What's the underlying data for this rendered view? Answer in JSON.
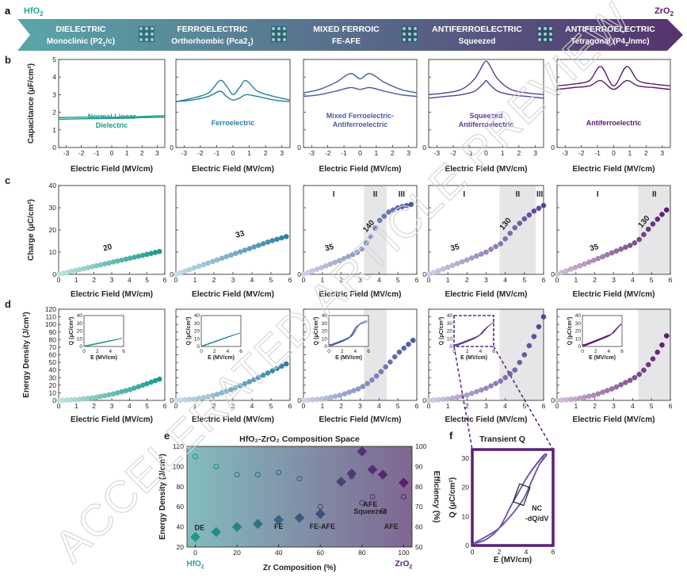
{
  "colors": {
    "c0": "#1a9a8c",
    "c1": "#2a7fa3",
    "c2": "#4a5aa3",
    "c3": "#5a3f95",
    "c4": "#5c1c6e",
    "arrow_start": "#5aa6a8",
    "arrow_end": "#55336e",
    "shade": "#e6e6e8",
    "watermark": "#d4d4d4",
    "hfo2_label": "#2aa39a",
    "zro2_label": "#5c1c6e"
  },
  "labels": {
    "panel_a": "a",
    "panel_b": "b",
    "panel_c": "c",
    "panel_d": "d",
    "panel_e": "e",
    "panel_f": "f",
    "hfo2": "HfO",
    "zro2": "ZrO",
    "sub2": "2",
    "watermark": "ACCELERATED ARTICLE PREVIEW"
  },
  "phases": [
    {
      "line1": "DIELECTRIC",
      "line2": "Monoclinic (P2",
      "sub": "1",
      "tail": "/c)",
      "icon": "crystal-icon"
    },
    {
      "line1": "FERROELECTRIC",
      "line2": "Orthorhombic (Pca2",
      "sub": "1",
      "tail": ")",
      "icon": "crystal-icon"
    },
    {
      "line1": "MIXED FERROIC",
      "line2": "FE-AFE",
      "sub": "",
      "tail": "",
      "icon": "crystal-icon"
    },
    {
      "line1": "ANTIFERROELECTRIC",
      "line2": "Squeezed",
      "sub": "",
      "tail": "",
      "icon": "crystal-icon"
    },
    {
      "line1": "ANTIFERROELECTRIC",
      "line2": "Tetragonal (P4",
      "sub": "2",
      "tail": "/nmc)",
      "icon": "crystal-icon"
    }
  ],
  "chart_data": [
    {
      "id": "capacitance",
      "type": "line",
      "ylabel": "Capacitance (μF/cm²)",
      "xlabel": "Electric Field (MV/cm)",
      "xlim": [
        -3.5,
        3.5
      ],
      "ylim": [
        0,
        5
      ],
      "xticks": [
        "-3",
        "-2",
        "-1",
        "0",
        "1",
        "2",
        "3"
      ],
      "yticks": [
        "0",
        "1",
        "2",
        "3",
        "4",
        "5"
      ],
      "panels": [
        {
          "label": "Normal Linear Dielectric",
          "x": [
            -3.5,
            -2,
            0,
            2,
            3.5
          ],
          "up": [
            1.7,
            1.72,
            1.72,
            1.76,
            1.8
          ],
          "down": [
            1.6,
            1.63,
            1.65,
            1.7,
            1.72
          ]
        },
        {
          "label": "Ferroelectric",
          "x": [
            -3.5,
            -2.5,
            -1.5,
            -0.8,
            -0.4,
            0,
            0.4,
            0.8,
            1.5,
            2.5,
            3.5
          ],
          "up": [
            2.6,
            2.8,
            3.1,
            3.8,
            3.5,
            3.0,
            3.4,
            3.8,
            3.2,
            2.9,
            2.7
          ],
          "down": [
            2.6,
            2.7,
            2.9,
            3.2,
            2.9,
            2.7,
            2.8,
            3.0,
            2.9,
            2.7,
            2.6
          ]
        },
        {
          "label": "Mixed Ferroelectric-Antiferroelectric",
          "x": [
            -3.5,
            -2.5,
            -1.5,
            -0.6,
            0,
            0.6,
            1.5,
            2.5,
            3.5
          ],
          "up": [
            3.1,
            3.3,
            3.7,
            4.2,
            3.9,
            4.2,
            3.7,
            3.3,
            3.1
          ],
          "down": [
            2.9,
            3.0,
            3.2,
            3.4,
            3.3,
            3.4,
            3.2,
            3.0,
            2.9
          ]
        },
        {
          "label": "Squeezed Antiferroelectric",
          "x": [
            -3.5,
            -2.5,
            -1.5,
            -0.7,
            -0.2,
            0,
            0.2,
            0.7,
            1.5,
            2.5,
            3.5
          ],
          "up": [
            3.0,
            3.1,
            3.3,
            3.9,
            4.7,
            4.9,
            4.7,
            3.9,
            3.3,
            3.1,
            3.0
          ],
          "down": [
            2.8,
            2.9,
            3.0,
            3.2,
            3.6,
            3.8,
            3.6,
            3.2,
            3.0,
            2.9,
            2.8
          ]
        },
        {
          "label": "Antiferroelectric",
          "x": [
            -3.5,
            -2.5,
            -1.5,
            -0.8,
            0,
            0.8,
            1.5,
            2.5,
            3.5
          ],
          "up": [
            3.5,
            3.6,
            3.8,
            4.6,
            3.5,
            4.6,
            3.8,
            3.6,
            3.5
          ],
          "down": [
            3.3,
            3.4,
            3.5,
            3.8,
            3.3,
            3.8,
            3.5,
            3.4,
            3.3
          ]
        }
      ]
    },
    {
      "id": "charge",
      "type": "scatter",
      "ylabel": "Charge (μC/cm²)",
      "xlabel": "Electric Field (MV/cm)",
      "xlim": [
        0,
        6
      ],
      "ylim": [
        0,
        40
      ],
      "xticks": [
        "0",
        "1",
        "2",
        "3",
        "4",
        "5",
        "6"
      ],
      "yticks": [
        "0",
        "10",
        "20",
        "30",
        "40"
      ],
      "panels": [
        {
          "field_max": 5.7,
          "charge_x": [
            0,
            1,
            2,
            3,
            4,
            5,
            5.7
          ],
          "charge_y": [
            0,
            1.8,
            3.6,
            5.4,
            7.2,
            9.0,
            10.3
          ],
          "slope_labels": [
            {
              "text": "20",
              "x": 2.8,
              "y": 11
            }
          ],
          "regions": []
        },
        {
          "field_max": 5.8,
          "charge_x": [
            0,
            1,
            2,
            3,
            4,
            5,
            5.8
          ],
          "charge_y": [
            0,
            3,
            6,
            9,
            12,
            15,
            17
          ],
          "slope_labels": [
            {
              "text": "33",
              "x": 3.4,
              "y": 17
            }
          ],
          "regions": []
        },
        {
          "field_max": 5.7,
          "charge_x": [
            0,
            1,
            2,
            3,
            3.5,
            4,
            4.5,
            5,
            5.7
          ],
          "charge_y": [
            0,
            3.2,
            6.5,
            10.5,
            16,
            24,
            28,
            30,
            31.5
          ],
          "slope_labels": [
            {
              "text": "35",
              "x": 1.4,
              "y": 11
            },
            {
              "text": "140",
              "x": 3.55,
              "y": 21
            }
          ],
          "regions": [
            {
              "label": "I",
              "x0": 0,
              "x1": 3.2
            },
            {
              "label": "II",
              "x0": 3.2,
              "x1": 4.4
            },
            {
              "label": "III",
              "x0": 4.4,
              "x1": 6
            }
          ]
        },
        {
          "field_max": 6,
          "charge_x": [
            0,
            1,
            2,
            3,
            3.8,
            4.5,
            5,
            5.5,
            6
          ],
          "charge_y": [
            0,
            3.2,
            6.5,
            10,
            14,
            21,
            25,
            28.5,
            31
          ],
          "slope_labels": [
            {
              "text": "35",
              "x": 1.4,
              "y": 11
            },
            {
              "text": "130",
              "x": 4.1,
              "y": 22
            }
          ],
          "regions": [
            {
              "label": "I",
              "x0": 0,
              "x1": 3.7
            },
            {
              "label": "II",
              "x0": 3.7,
              "x1": 5.6
            },
            {
              "label": "III",
              "x0": 5.6,
              "x1": 6
            }
          ]
        },
        {
          "field_max": 5.8,
          "charge_x": [
            0,
            1,
            2,
            3,
            4,
            4.4,
            5,
            5.5,
            5.8
          ],
          "charge_y": [
            0,
            3.2,
            6.5,
            10,
            13.5,
            16,
            22,
            26.5,
            29
          ],
          "slope_labels": [
            {
              "text": "35",
              "x": 2.0,
              "y": 11
            },
            {
              "text": "130",
              "x": 4.7,
              "y": 23
            }
          ],
          "regions": [
            {
              "label": "I",
              "x0": 0,
              "x1": 4.3
            },
            {
              "label": "II",
              "x0": 4.3,
              "x1": 6
            }
          ]
        }
      ]
    },
    {
      "id": "energy",
      "type": "scatter",
      "ylabel": "Energy Density (J/cm³)",
      "xlabel": "Electric Field (MV/cm)",
      "xlim": [
        0,
        6
      ],
      "ylim": [
        0,
        120
      ],
      "xticks": [
        "0",
        "1",
        "2",
        "3",
        "4",
        "5",
        "6"
      ],
      "yticks": [
        "0",
        "10",
        "20",
        "30",
        "40",
        "50",
        "60",
        "70",
        "80",
        "90",
        "100",
        "110",
        "120"
      ],
      "inset": {
        "xlabel": "E (MV/cm)",
        "ylabel": "Q (μC/cm²)",
        "xticks": [
          "0",
          "2",
          "4",
          "6"
        ],
        "yticks": [
          "0",
          "10",
          "20",
          "30",
          "40"
        ]
      },
      "panels": [
        {
          "field_max": 5.7,
          "energy_x": [
            0,
            1,
            2,
            3,
            4,
            5,
            5.7
          ],
          "energy_y": [
            0,
            1,
            3.5,
            8,
            14,
            22,
            28
          ],
          "regions": []
        },
        {
          "field_max": 5.8,
          "energy_x": [
            0,
            1,
            2,
            3,
            4,
            5,
            5.8
          ],
          "energy_y": [
            0,
            1.7,
            6.5,
            15,
            26,
            38,
            48
          ],
          "regions": []
        },
        {
          "field_max": 5.8,
          "energy_x": [
            0,
            1,
            2,
            3,
            3.5,
            4,
            4.5,
            5,
            5.8
          ],
          "energy_y": [
            0,
            1.8,
            7,
            16,
            24,
            35,
            48,
            62,
            79
          ],
          "regions": [
            {
              "x0": 3.2,
              "x1": 4.4
            }
          ]
        },
        {
          "field_max": 6,
          "energy_x": [
            0,
            1,
            2,
            3,
            3.8,
            4.5,
            5,
            5.5,
            6
          ],
          "energy_y": [
            0,
            1.8,
            7,
            16,
            26,
            40,
            60,
            84,
            110
          ],
          "regions": [
            {
              "x0": 3.7,
              "x1": 6
            }
          ]
        },
        {
          "field_max": 5.8,
          "energy_x": [
            0,
            1,
            2,
            3,
            4,
            4.5,
            5,
            5.5,
            5.8
          ],
          "energy_y": [
            0,
            1.8,
            7,
            16,
            28,
            37,
            52,
            70,
            85
          ],
          "regions": [
            {
              "x0": 4.3,
              "x1": 6
            }
          ]
        }
      ]
    },
    {
      "id": "composition",
      "type": "scatter",
      "title": "HfO₂-ZrO₂ Composition Space",
      "xlabel": "Zr Composition (%)",
      "ylabel": "Energy Density (J/cm³)",
      "y2label": "Efficiency (%)",
      "xlim": [
        -4,
        104
      ],
      "ylim": [
        20,
        120
      ],
      "y2lim": [
        50,
        100
      ],
      "xticks": [
        "0",
        "20",
        "40",
        "60",
        "80",
        "100"
      ],
      "yticks": [
        "20",
        "40",
        "60",
        "80",
        "100",
        "120"
      ],
      "y2ticks": [
        "50",
        "60",
        "70",
        "80",
        "90",
        "100"
      ],
      "energy_x": [
        0,
        10,
        20,
        30,
        40,
        50,
        60,
        70,
        75,
        80,
        85,
        90,
        100
      ],
      "energy_y": [
        30,
        35,
        40,
        43,
        47,
        49,
        53,
        85,
        93,
        115,
        97,
        92,
        84
      ],
      "efficiency_x": [
        0,
        10,
        20,
        30,
        40,
        50,
        60,
        70,
        75,
        80,
        85,
        90,
        100
      ],
      "efficiency_y": [
        95,
        90,
        86,
        86,
        87,
        84,
        70,
        82,
        85,
        72,
        75,
        68,
        75
      ],
      "phase_labels": [
        {
          "text": "DE",
          "x": 2,
          "y": 37
        },
        {
          "text": "FE",
          "x": 40,
          "y": 38
        },
        {
          "text": "FE-AFE",
          "x": 61,
          "y": 38
        },
        {
          "text": "AFE",
          "x": 84,
          "y": 60
        },
        {
          "text": "Squeezed",
          "x": 84,
          "y": 53
        },
        {
          "text": "AFE",
          "x": 94,
          "y": 38
        }
      ]
    },
    {
      "id": "transient",
      "type": "line",
      "title": "Transient Q",
      "xlabel": "E (MV/cm)",
      "ylabel": "Q (μC/cm²)",
      "xlim": [
        0,
        6
      ],
      "ylim": [
        0,
        33
      ],
      "xticks": [
        "0",
        "2",
        "4",
        "6"
      ],
      "yticks": [
        "0",
        "10",
        "20",
        "30"
      ],
      "loop_x": [
        0,
        1,
        2,
        3,
        3.8,
        4.4,
        5,
        5.5,
        5.3,
        4.6,
        4.0,
        3.4,
        2.8,
        2,
        1,
        0
      ],
      "loop_y": [
        0.5,
        3,
        6,
        11,
        16,
        22,
        28,
        31,
        31,
        27,
        23,
        18,
        13,
        6,
        2,
        0.5
      ],
      "annotation": "NC",
      "annotation_line2": "-dQ/dV"
    }
  ]
}
